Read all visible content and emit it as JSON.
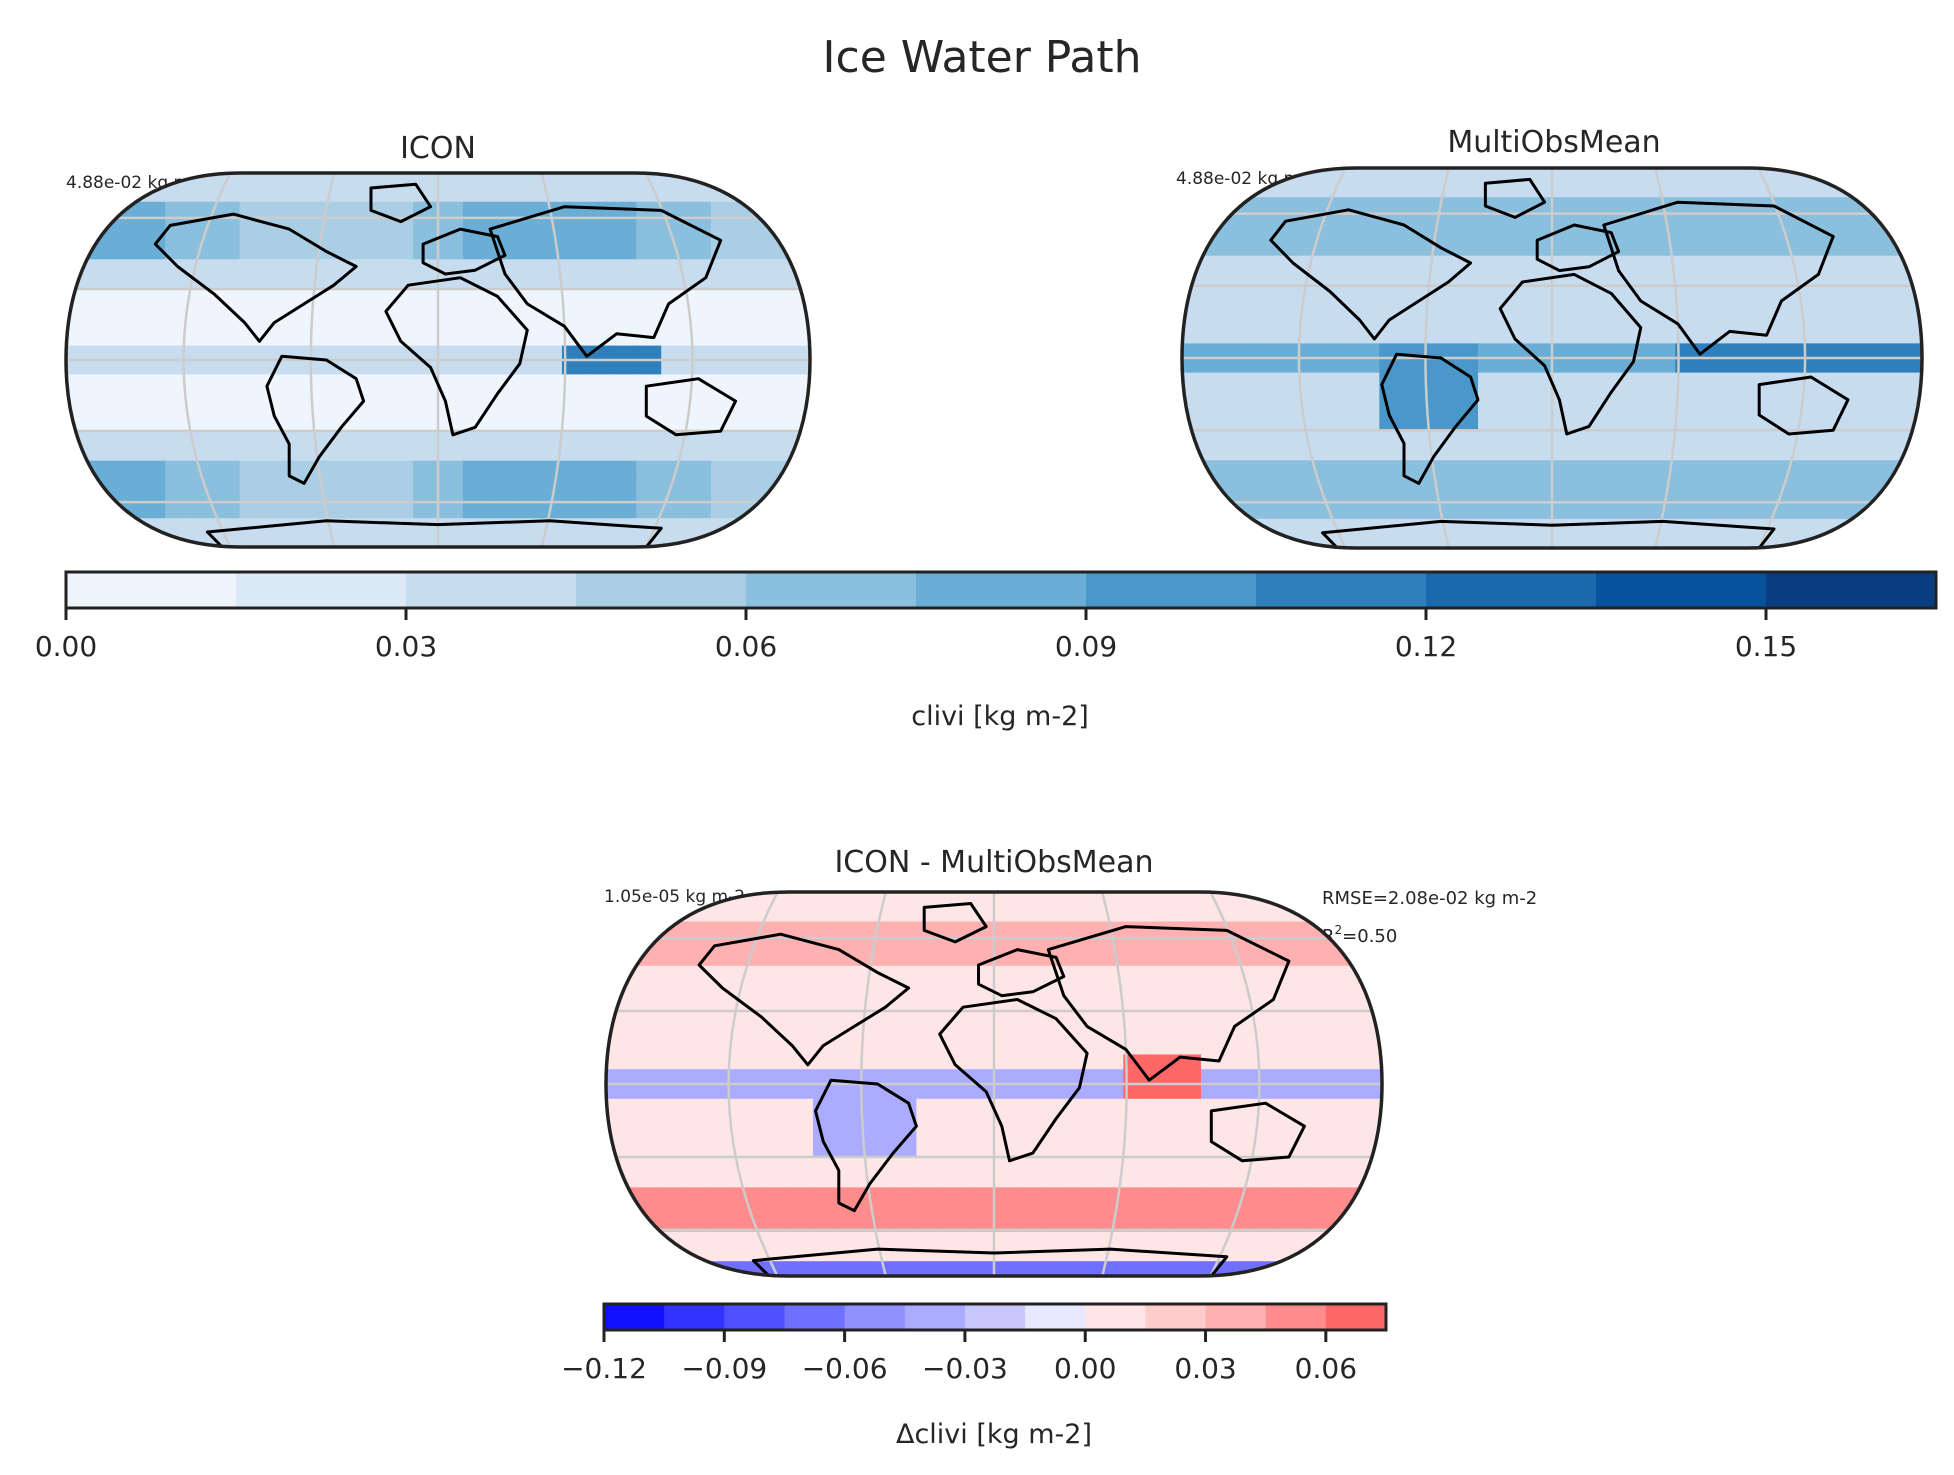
{
  "figure": {
    "title": "Ice Water Path"
  },
  "panels": [
    {
      "id": "icon",
      "title": "ICON",
      "mean_label": "4.88e-02 kg m-2"
    },
    {
      "id": "obs",
      "title": "MultiObsMean",
      "mean_label": "4.88e-02 kg m-2"
    },
    {
      "id": "diff",
      "title": "ICON - MultiObsMean",
      "mean_label": "1.05e-05 kg m-2",
      "stats": {
        "rmse": "RMSE=2.08e-02 kg m-2",
        "r2_prefix": "R",
        "r2_sup": "2",
        "r2_value": "=0.50"
      }
    }
  ],
  "colorbars": {
    "abs": {
      "label": "clivi [kg m-2]",
      "min": 0.0,
      "max": 0.165,
      "levels": [
        0.0,
        0.015,
        0.03,
        0.045,
        0.06,
        0.075,
        0.09,
        0.105,
        0.12,
        0.135,
        0.15,
        0.165
      ],
      "colors": [
        "#eef5fc",
        "#dce9f6",
        "#c8dcef",
        "#aacfe5",
        "#8abfdd",
        "#6aaed6",
        "#4b97c9",
        "#2f7fbc",
        "#1a68ae",
        "#08519c",
        "#083d7f"
      ],
      "ticks": [
        0.0,
        0.03,
        0.06,
        0.09,
        0.12,
        0.15
      ],
      "tick_labels": [
        "0.00",
        "0.03",
        "0.06",
        "0.09",
        "0.12",
        "0.15"
      ]
    },
    "diff": {
      "label": "Δclivi [kg m-2]",
      "min": -0.12,
      "max": 0.075,
      "levels": [
        -0.12,
        -0.105,
        -0.09,
        -0.075,
        -0.06,
        -0.045,
        -0.03,
        -0.015,
        0.0,
        0.015,
        0.03,
        0.045,
        0.06,
        0.075
      ],
      "colors": [
        "#1010ff",
        "#3333ff",
        "#5050ff",
        "#7070ff",
        "#9090ff",
        "#ababff",
        "#c8c8ff",
        "#e8e8ff",
        "#ffe6e6",
        "#ffcccc",
        "#ffb0b0",
        "#ff8c8c",
        "#ff6666"
      ],
      "ticks": [
        -0.12,
        -0.09,
        -0.06,
        -0.03,
        0.0,
        0.03,
        0.06
      ],
      "tick_labels": [
        "−0.12",
        "−0.09",
        "−0.06",
        "−0.03",
        "0.00",
        "0.03",
        "0.06"
      ]
    }
  }
}
